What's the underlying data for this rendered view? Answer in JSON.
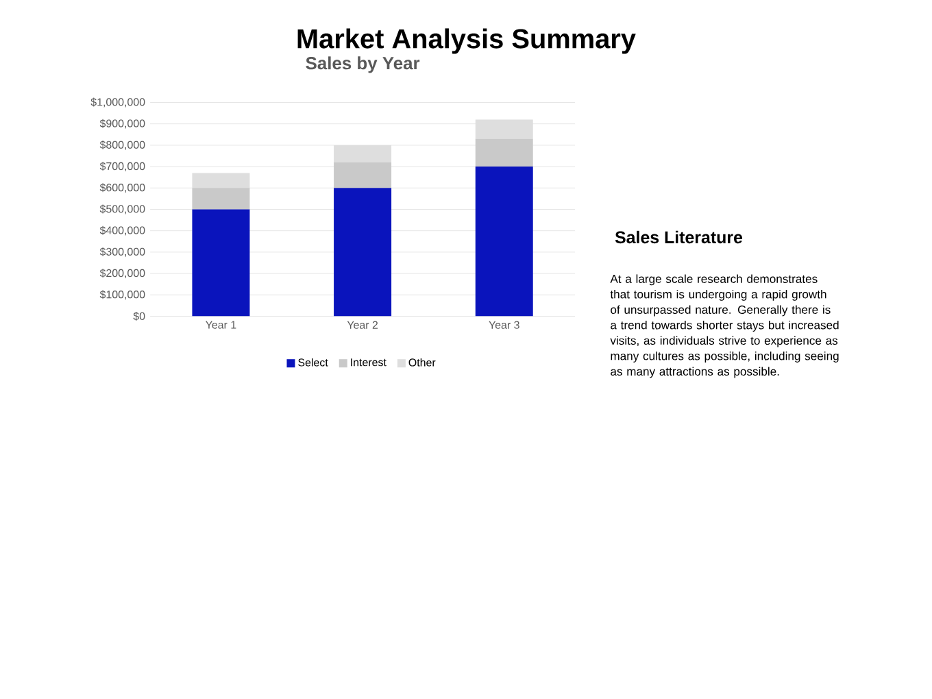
{
  "chart_data": {
    "type": "bar",
    "title": "Sales by Year",
    "stacked": true,
    "categories": [
      "Year 1",
      "Year 2",
      "Year 3"
    ],
    "series": [
      {
        "name": "Select",
        "color": "#0a14bc",
        "values": [
          500000,
          600000,
          700000
        ]
      },
      {
        "name": "Interest",
        "color": "#c9c9c9",
        "values": [
          100000,
          120000,
          130000
        ]
      },
      {
        "name": "Other",
        "color": "#dedede",
        "values": [
          70000,
          80000,
          90000
        ]
      }
    ],
    "ylim": [
      0,
      1000000
    ],
    "yticks": [
      {
        "value": 0,
        "label": "$0"
      },
      {
        "value": 100000,
        "label": "$100,000"
      },
      {
        "value": 200000,
        "label": "$200,000"
      },
      {
        "value": 300000,
        "label": "$300,000"
      },
      {
        "value": 400000,
        "label": "$400,000"
      },
      {
        "value": 500000,
        "label": "$500,000"
      },
      {
        "value": 600000,
        "label": "$600,000"
      },
      {
        "value": 700000,
        "label": "$700,000"
      },
      {
        "value": 800000,
        "label": "$800,000"
      },
      {
        "value": 900000,
        "label": "$900,000"
      },
      {
        "value": 1000000,
        "label": "$1,000,000"
      }
    ],
    "grid": "y",
    "legend": "bottom",
    "annotations": [
      "Market Analysis Summary",
      "Sales Literature",
      "At a large scale research demonstrates that tourism is undergoing a rapid growth of unsurpassed nature. Generally there is a trend towards shorter stays but increased visits, as individuals strive to experience as many cultures as possible, including seeing as many attractions as possible."
    ]
  }
}
